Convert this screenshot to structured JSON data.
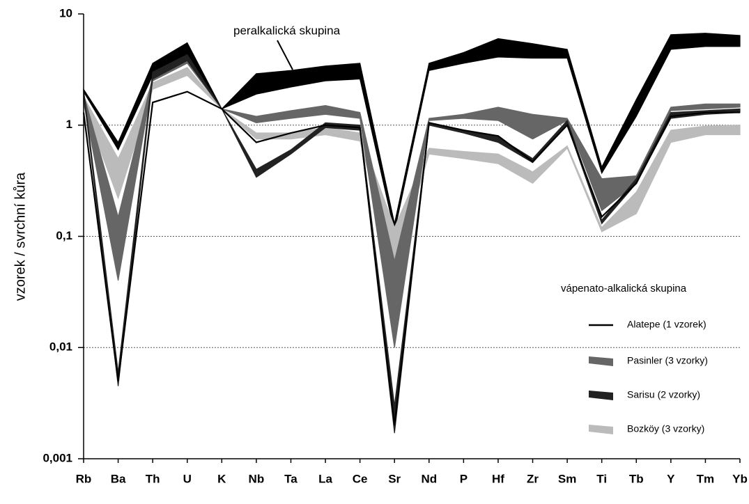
{
  "chart_data": {
    "type": "band",
    "ylabel": "vzorek / svrchní kůra",
    "legend_title": "vápenato-alkalická skupina",
    "log_scale": true,
    "grid": true,
    "categories": [
      "Rb",
      "Ba",
      "Th",
      "U",
      "K",
      "Nb",
      "Ta",
      "La",
      "Ce",
      "Sr",
      "Nd",
      "P",
      "Hf",
      "Zr",
      "Sm",
      "Ti",
      "Tb",
      "Y",
      "Tm",
      "Yb"
    ],
    "ylim": [
      0.001,
      10
    ],
    "yticks": [
      {
        "value": 0.001,
        "label": "0,001"
      },
      {
        "value": 0.01,
        "label": "0,01"
      },
      {
        "value": 0.1,
        "label": "0,1"
      },
      1,
      10
    ],
    "series": [
      {
        "name": "peralkalická skupina",
        "color": "#000000",
        "high": [
          2.1,
          0.7,
          3.6,
          5.5,
          1.4,
          2.9,
          3.1,
          3.4,
          3.6,
          0.13,
          3.6,
          4.5,
          6,
          5.4,
          4.8,
          0.42,
          1.7,
          6.5,
          6.7,
          6.4
        ],
        "low": [
          2.0,
          0.6,
          2.8,
          4,
          1.4,
          1.9,
          2.2,
          2.5,
          2.6,
          0.11,
          3.1,
          3.6,
          4.1,
          4.0,
          4.0,
          0.37,
          1.2,
          4.8,
          5.1,
          5.1
        ]
      },
      {
        "name": "Bozköy (3 vzorky)",
        "color": "#bbbbbb",
        "high": [
          1.8,
          0.5,
          2.4,
          3.3,
          1.4,
          0.85,
          0.85,
          0.95,
          0.85,
          0.12,
          0.62,
          0.58,
          0.55,
          0.38,
          0.65,
          0.12,
          0.25,
          0.9,
          0.98,
          1.0
        ],
        "low": [
          1.5,
          0.22,
          2.1,
          2.8,
          1.4,
          0.75,
          0.75,
          0.82,
          0.72,
          0.05,
          0.55,
          0.5,
          0.45,
          0.3,
          0.62,
          0.11,
          0.16,
          0.7,
          0.82,
          0.82
        ]
      },
      {
        "name": "Pasinler (3 vzorky)",
        "color": "#666666",
        "high": [
          1.9,
          0.15,
          2.7,
          4,
          1.4,
          1.2,
          1.35,
          1.5,
          1.3,
          0.06,
          1.15,
          1.25,
          1.45,
          1.25,
          1.15,
          0.33,
          0.35,
          1.45,
          1.55,
          1.55
        ],
        "low": [
          1.6,
          0.04,
          2.5,
          3.6,
          1.4,
          1.05,
          1.15,
          1.25,
          1.15,
          0.01,
          1.1,
          1.15,
          1.1,
          0.75,
          1.1,
          0.17,
          0.3,
          1.35,
          1.4,
          1.45
        ]
      },
      {
        "name": "Sarisu (2 vzorky)",
        "color": "#222222",
        "high": [
          2.1,
          0.006,
          3.0,
          4.3,
          1.4,
          0.4,
          0.6,
          1.05,
          1.0,
          0.003,
          1.05,
          0.9,
          0.78,
          0.5,
          1.1,
          0.14,
          0.33,
          1.3,
          1.35,
          1.4
        ],
        "low": [
          1.9,
          0.0045,
          2.6,
          3.8,
          1.4,
          0.34,
          0.55,
          0.95,
          0.9,
          0.0017,
          1.0,
          0.85,
          0.7,
          0.46,
          1.0,
          0.13,
          0.3,
          1.15,
          1.25,
          1.3
        ]
      },
      {
        "name": "Alatepe (1 vzorek)",
        "color": "#000000",
        "values": [
          1.3,
          0.005,
          1.6,
          2.0,
          1.4,
          0.7,
          0.85,
          1.0,
          0.95,
          0.002,
          1.05,
          0.9,
          0.8,
          0.47,
          1.0,
          0.15,
          0.3,
          1.2,
          1.3,
          1.3
        ]
      }
    ]
  }
}
